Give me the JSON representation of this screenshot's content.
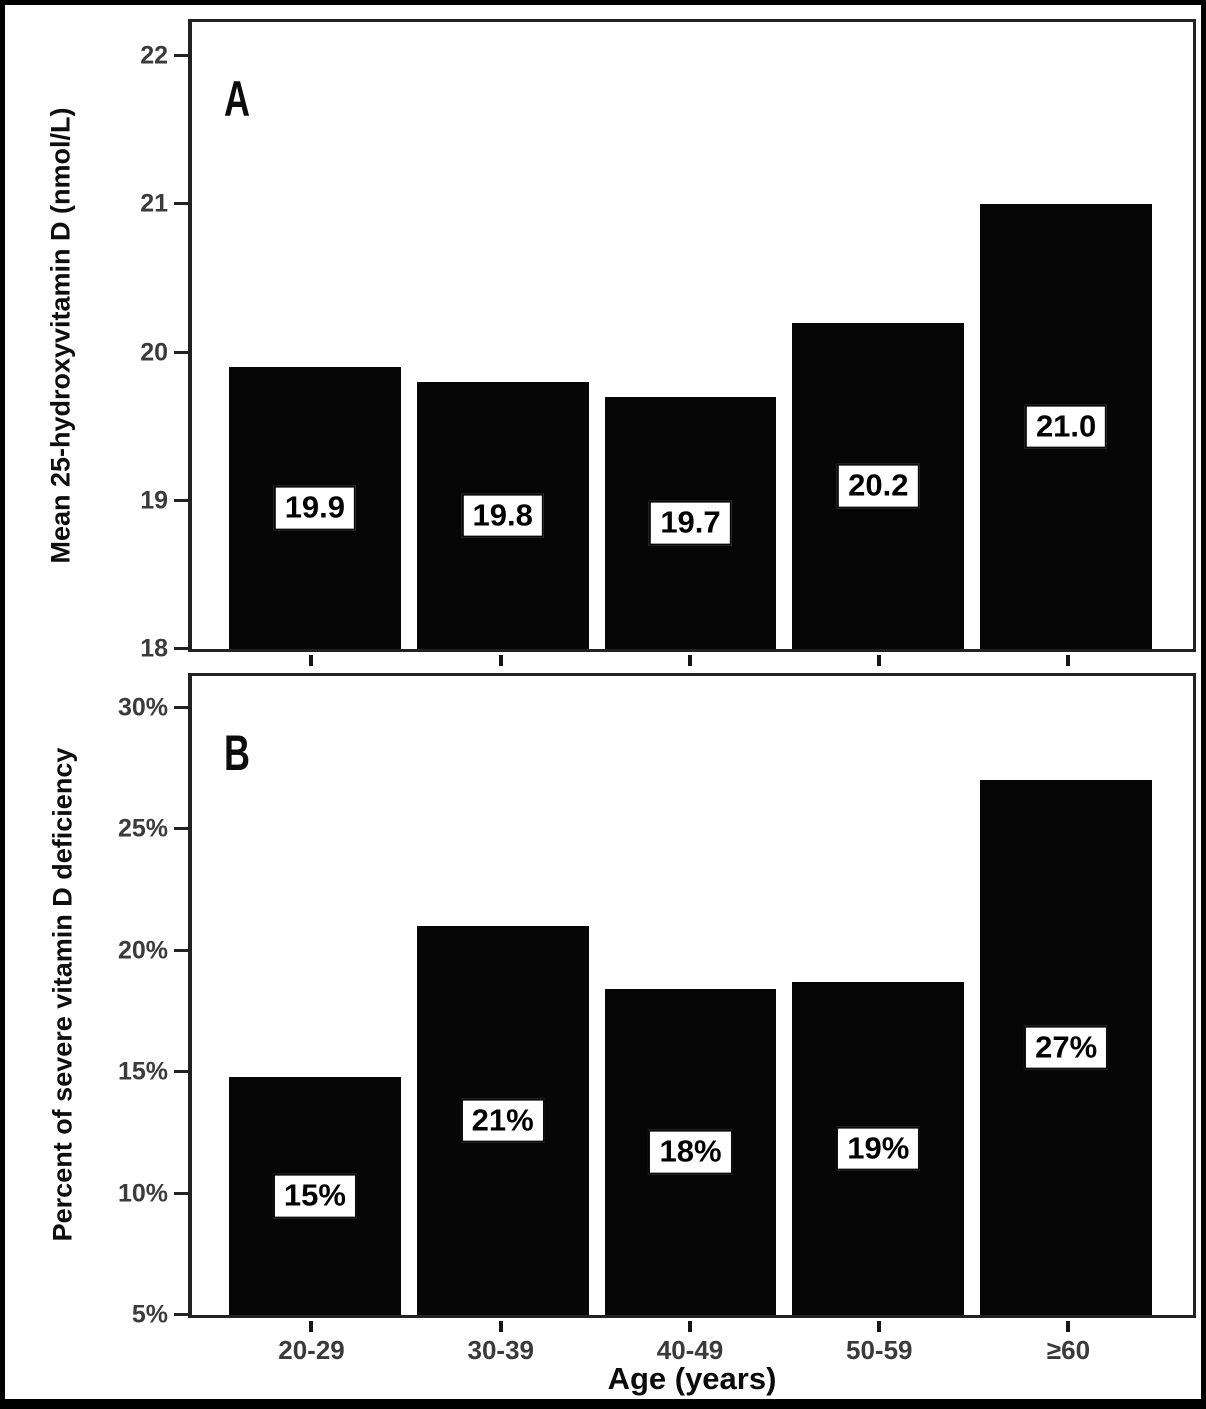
{
  "figure": {
    "categories": [
      "20-29",
      "30-39",
      "40-49",
      "50-59",
      "≥60"
    ],
    "xlabel": "Age (years)",
    "background": "#ffffff",
    "frame_color": "#000000",
    "bar_color": "#060606",
    "axis_color": "#222222",
    "tick_label_color": "#3b3b3b"
  },
  "chart_data": [
    {
      "type": "bar",
      "panel_label": "A",
      "ylabel": "Mean 25-hydroxyvitamin D (nmol/L)",
      "categories": [
        "20-29",
        "30-39",
        "40-49",
        "50-59",
        "≥60"
      ],
      "values": [
        19.9,
        19.8,
        19.7,
        20.2,
        21.0
      ],
      "bar_labels": [
        "19.9",
        "19.8",
        "19.7",
        "20.2",
        "21.0"
      ],
      "yticks": [
        {
          "label": "22",
          "value": 22
        },
        {
          "label": "21",
          "value": 21
        },
        {
          "label": "20",
          "value": 20
        },
        {
          "label": "19",
          "value": 19
        },
        {
          "label": "18",
          "value": 18
        }
      ],
      "ylim": [
        18,
        22.23
      ],
      "grid": false,
      "legend": null,
      "xlabel": ""
    },
    {
      "type": "bar",
      "panel_label": "B",
      "ylabel": "Percent of severe vitamin D deficiency",
      "categories": [
        "20-29",
        "30-39",
        "40-49",
        "50-59",
        "≥60"
      ],
      "values": [
        14.8,
        21,
        18.4,
        18.7,
        27
      ],
      "bar_labels": [
        "15%",
        "21%",
        "18%",
        "19%",
        "27%"
      ],
      "yticks": [
        {
          "label": "30%",
          "value": 30
        },
        {
          "label": "25%",
          "value": 25
        },
        {
          "label": "20%",
          "value": 20
        },
        {
          "label": "15%",
          "value": 15
        },
        {
          "label": "10%",
          "value": 10
        },
        {
          "label": "5%",
          "value": 5
        }
      ],
      "ylim": [
        5,
        31.3
      ],
      "grid": false,
      "legend": null,
      "xlabel": "Age (years)"
    }
  ]
}
